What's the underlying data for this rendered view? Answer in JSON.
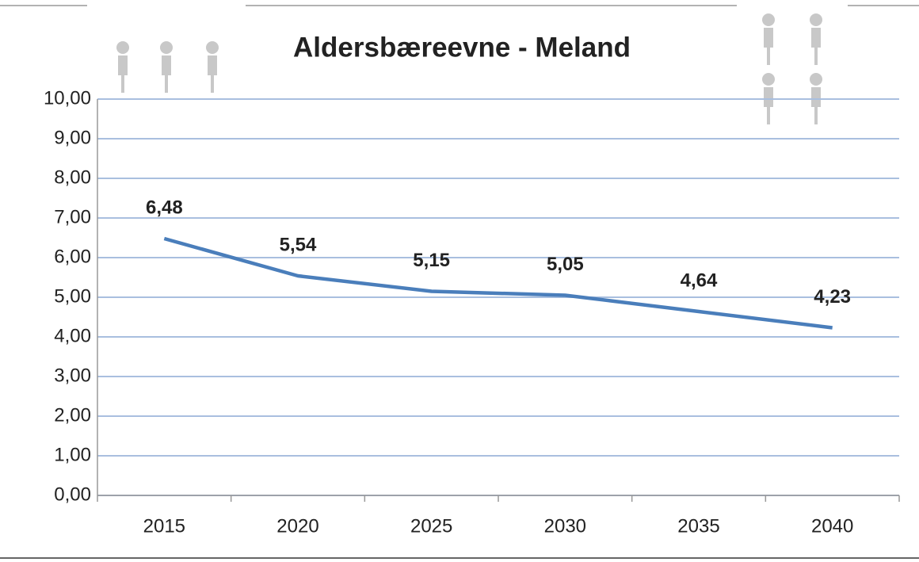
{
  "chart_data": {
    "type": "line",
    "title": "Aldersbæreevne - Meland",
    "categories": [
      "2015",
      "2020",
      "2025",
      "2030",
      "2035",
      "2040"
    ],
    "values": [
      6.48,
      5.54,
      5.15,
      5.05,
      4.64,
      4.23
    ],
    "value_labels": [
      "6,48",
      "5,54",
      "5,15",
      "5,05",
      "4,64",
      "4,23"
    ],
    "color": "#4a7ebb",
    "ylim": [
      0,
      10
    ],
    "yticks": [
      {
        "value": 0,
        "label": "0,00"
      },
      {
        "value": 1,
        "label": "1,00"
      },
      {
        "value": 2,
        "label": "2,00"
      },
      {
        "value": 3,
        "label": "3,00"
      },
      {
        "value": 4,
        "label": "4,00"
      },
      {
        "value": 5,
        "label": "5,00"
      },
      {
        "value": 6,
        "label": "6,00"
      },
      {
        "value": 7,
        "label": "7,00"
      },
      {
        "value": 8,
        "label": "8,00"
      },
      {
        "value": 9,
        "label": "9,00"
      },
      {
        "value": 10,
        "label": "10,00"
      }
    ],
    "grid": true
  }
}
